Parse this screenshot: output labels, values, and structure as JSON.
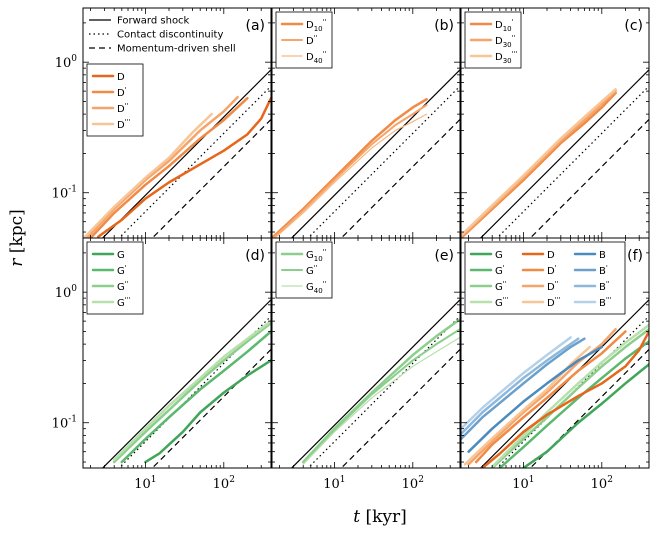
{
  "chart_data": {
    "type": "line",
    "x_scale": "log",
    "y_scale": "log",
    "xlim": [
      1.6,
      400
    ],
    "ylim": [
      0.045,
      2.6
    ],
    "xlabel_symbol": "t",
    "xlabel_unit": "[kyr]",
    "ylabel_symbol": "r",
    "ylabel_unit": "[kpc]",
    "xticks": [
      10,
      100
    ],
    "xtick_labels": [
      {
        "base": "10",
        "exp": "1"
      },
      {
        "base": "10",
        "exp": "2"
      }
    ],
    "yticks": [
      0.1,
      1.0
    ],
    "ytick_labels": [
      {
        "base": "10",
        "exp": "-1"
      },
      {
        "base": "10",
        "exp": "0"
      }
    ],
    "reference_lines": {
      "forward_shock": {
        "name": "Forward shock",
        "coef": 0.024,
        "slope": 0.6
      },
      "contact_discontinuity": {
        "name": "Contact discontinuity",
        "coef": 0.018,
        "slope": 0.6
      },
      "momentum_shell": {
        "name": "Momentum-driven shell",
        "coef": 0.01,
        "slope": 0.6
      }
    },
    "reference_legend_panel": "a",
    "colors": {
      "D": "#e6671c",
      "D'": "#f08a45",
      "D''": "#f5a56b",
      "D'''": "#f8c596",
      "G": "#41a55a",
      "G'": "#5cb86e",
      "G''": "#8ccf8c",
      "G'''": "#b7e0ac",
      "B": "#4b8bbe",
      "B'": "#6ba0cc",
      "B''": "#8db8db",
      "B'''": "#b4d1e8"
    },
    "panels": [
      {
        "label": "(a)",
        "legend": {
          "position": "upper-left",
          "columns": 1
        },
        "series": [
          {
            "name": "D",
            "sup": "",
            "color": "#e6671c",
            "width": 2.5,
            "x": [
              2.5,
              5,
              10,
              20,
              50,
              100,
              200,
              300,
              400
            ],
            "y": [
              0.046,
              0.062,
              0.09,
              0.12,
              0.165,
              0.21,
              0.28,
              0.37,
              0.53
            ]
          },
          {
            "name": "D",
            "sup": "'",
            "color": "#f08a45",
            "width": 2.5,
            "x": [
              2,
              4,
              10,
              20,
              50,
              100,
              200
            ],
            "y": [
              0.045,
              0.07,
              0.115,
              0.16,
              0.26,
              0.36,
              0.53
            ]
          },
          {
            "name": "D",
            "sup": "''",
            "color": "#f5a56b",
            "width": 2.5,
            "x": [
              1.8,
              4,
              10,
              20,
              50,
              100,
              150
            ],
            "y": [
              0.045,
              0.075,
              0.125,
              0.175,
              0.3,
              0.42,
              0.54
            ]
          },
          {
            "name": "D",
            "sup": "'''",
            "color": "#f8c596",
            "width": 2.5,
            "x": [
              1.7,
              4,
              10,
              20,
              40,
              70
            ],
            "y": [
              0.046,
              0.078,
              0.13,
              0.185,
              0.29,
              0.4
            ]
          }
        ]
      },
      {
        "label": "(b)",
        "legend": {
          "position": "upper-left",
          "columns": 1
        },
        "series": [
          {
            "name": "D",
            "sub": "10",
            "sup": "''",
            "color": "#f08a45",
            "width": 2.5,
            "x": [
              1.6,
              4,
              10,
              30,
              60,
              100,
              150
            ],
            "y": [
              0.045,
              0.075,
              0.13,
              0.25,
              0.36,
              0.45,
              0.52
            ]
          },
          {
            "name": "D",
            "sub": "",
            "sup": "''",
            "color": "#f5a56b",
            "width": 2.0,
            "x": [
              1.6,
              4,
              10,
              30,
              60,
              100,
              150
            ],
            "y": [
              0.044,
              0.073,
              0.125,
              0.235,
              0.33,
              0.4,
              0.47
            ]
          },
          {
            "name": "D",
            "sub": "40",
            "sup": "''",
            "color": "#f8b880",
            "width": 1.2,
            "x": [
              1.6,
              4,
              10,
              30,
              60,
              100,
              150
            ],
            "y": [
              0.043,
              0.07,
              0.12,
              0.22,
              0.3,
              0.35,
              0.4
            ]
          }
        ]
      },
      {
        "label": "(c)",
        "legend": {
          "position": "upper-left",
          "columns": 1
        },
        "series": [
          {
            "name": "D",
            "sub": "10",
            "sup": "'",
            "color": "#f08a45",
            "width": 2.5,
            "x": [
              1.6,
              4,
              10,
              30,
              60,
              100,
              150
            ],
            "y": [
              0.045,
              0.075,
              0.125,
              0.24,
              0.34,
              0.45,
              0.58
            ]
          },
          {
            "name": "D",
            "sub": "30",
            "sup": "''",
            "color": "#f5a56b",
            "width": 2.5,
            "x": [
              1.6,
              4,
              10,
              30,
              60,
              100,
              150
            ],
            "y": [
              0.046,
              0.077,
              0.13,
              0.25,
              0.36,
              0.48,
              0.6
            ]
          },
          {
            "name": "D",
            "sub": "30",
            "sup": "'''",
            "color": "#f8c596",
            "width": 2.5,
            "x": [
              1.6,
              4,
              10,
              30,
              60,
              100,
              150
            ],
            "y": [
              0.047,
              0.08,
              0.135,
              0.26,
              0.38,
              0.5,
              0.62
            ]
          }
        ]
      },
      {
        "label": "(d)",
        "legend": {
          "position": "upper-left",
          "columns": 1
        },
        "series": [
          {
            "name": "G",
            "sup": "",
            "color": "#41a55a",
            "width": 2.5,
            "x": [
              10,
              15,
              20,
              30,
              50,
              100,
              200,
              400
            ],
            "y": [
              0.05,
              0.058,
              0.068,
              0.085,
              0.12,
              0.17,
              0.23,
              0.3
            ]
          },
          {
            "name": "G",
            "sup": "'",
            "color": "#5cb86e",
            "width": 2.5,
            "x": [
              5,
              10,
              20,
              50,
              100,
              200,
              400
            ],
            "y": [
              0.05,
              0.075,
              0.11,
              0.18,
              0.25,
              0.35,
              0.5
            ]
          },
          {
            "name": "G",
            "sup": "''",
            "color": "#8ccf8c",
            "width": 2.5,
            "x": [
              4,
              10,
              20,
              50,
              100,
              200,
              400
            ],
            "y": [
              0.05,
              0.085,
              0.125,
              0.21,
              0.3,
              0.42,
              0.58
            ]
          },
          {
            "name": "G",
            "sup": "'''",
            "color": "#b7e0ac",
            "width": 2.5,
            "x": [
              4,
              10,
              20,
              50,
              100,
              200,
              400
            ],
            "y": [
              0.052,
              0.09,
              0.135,
              0.22,
              0.32,
              0.44,
              0.6
            ]
          }
        ]
      },
      {
        "label": "(e)",
        "legend": {
          "position": "upper-left",
          "columns": 1
        },
        "series": [
          {
            "name": "G",
            "sub": "10",
            "sup": "''",
            "color": "#8ccf8c",
            "width": 2.5,
            "x": [
              4,
              10,
              30,
              100,
              200,
              400
            ],
            "y": [
              0.05,
              0.09,
              0.17,
              0.33,
              0.46,
              0.62
            ]
          },
          {
            "name": "G",
            "sub": "",
            "sup": "''",
            "color": "#8ccf8c",
            "width": 2.0,
            "x": [
              4,
              10,
              30,
              100,
              200,
              400
            ],
            "y": [
              0.05,
              0.088,
              0.165,
              0.3,
              0.4,
              0.52
            ]
          },
          {
            "name": "G",
            "sub": "40",
            "sup": "''",
            "color": "#b7e0ac",
            "width": 1.2,
            "x": [
              4,
              10,
              30,
              100,
              200,
              400
            ],
            "y": [
              0.048,
              0.085,
              0.155,
              0.27,
              0.35,
              0.45
            ]
          }
        ]
      },
      {
        "label": "(f)",
        "legend": {
          "position": "upper-left",
          "columns": 3
        },
        "series": [
          {
            "name": "G",
            "sup": "",
            "color": "#41a55a",
            "width": 2.5,
            "x": [
              10,
              20,
              50,
              100,
              200,
              400
            ],
            "y": [
              0.045,
              0.06,
              0.1,
              0.14,
              0.2,
              0.28
            ]
          },
          {
            "name": "G",
            "sup": "'",
            "color": "#5cb86e",
            "width": 2.5,
            "x": [
              5,
              10,
              20,
              50,
              100,
              200,
              400
            ],
            "y": [
              0.045,
              0.065,
              0.095,
              0.155,
              0.22,
              0.31,
              0.42
            ]
          },
          {
            "name": "G",
            "sup": "''",
            "color": "#8ccf8c",
            "width": 2.5,
            "x": [
              4,
              10,
              20,
              50,
              100,
              200,
              400
            ],
            "y": [
              0.045,
              0.075,
              0.11,
              0.185,
              0.27,
              0.38,
              0.52
            ]
          },
          {
            "name": "G",
            "sup": "'''",
            "color": "#b7e0ac",
            "width": 2.5,
            "x": [
              4,
              10,
              20,
              50,
              100,
              200,
              400
            ],
            "y": [
              0.046,
              0.08,
              0.12,
              0.2,
              0.29,
              0.41,
              0.56
            ]
          },
          {
            "name": "D",
            "sup": "",
            "color": "#e6671c",
            "width": 2.5,
            "x": [
              3,
              5,
              10,
              20,
              50,
              100,
              200,
              300,
              400
            ],
            "y": [
              0.045,
              0.058,
              0.085,
              0.115,
              0.16,
              0.2,
              0.27,
              0.36,
              0.5
            ]
          },
          {
            "name": "D",
            "sup": "'",
            "color": "#f08a45",
            "width": 2.5,
            "x": [
              2.5,
              4,
              10,
              20,
              50,
              100,
              200
            ],
            "y": [
              0.05,
              0.068,
              0.11,
              0.155,
              0.25,
              0.34,
              0.5
            ]
          },
          {
            "name": "D",
            "sup": "''",
            "color": "#f5a56b",
            "width": 2.5,
            "x": [
              2,
              4,
              10,
              20,
              50,
              100,
              150
            ],
            "y": [
              0.048,
              0.072,
              0.12,
              0.17,
              0.29,
              0.4,
              0.52
            ]
          },
          {
            "name": "D",
            "sup": "'''",
            "color": "#f8c596",
            "width": 2.5,
            "x": [
              1.8,
              4,
              10,
              20,
              40,
              70
            ],
            "y": [
              0.048,
              0.076,
              0.125,
              0.18,
              0.28,
              0.38
            ]
          },
          {
            "name": "B",
            "sup": "",
            "color": "#4b8bbe",
            "width": 2.5,
            "x": [
              2,
              4,
              10,
              20,
              50,
              100
            ],
            "y": [
              0.06,
              0.09,
              0.145,
              0.2,
              0.3,
              0.38
            ]
          },
          {
            "name": "B",
            "sup": "'",
            "color": "#6ba0cc",
            "width": 2.5,
            "x": [
              1.6,
              3,
              10,
              20,
              40,
              60
            ],
            "y": [
              0.075,
              0.11,
              0.2,
              0.28,
              0.38,
              0.44
            ]
          },
          {
            "name": "B",
            "sup": "''",
            "color": "#8db8db",
            "width": 2.5,
            "x": [
              1.6,
              3,
              10,
              20,
              50
            ],
            "y": [
              0.082,
              0.12,
              0.22,
              0.3,
              0.44
            ]
          },
          {
            "name": "B",
            "sup": "'''",
            "color": "#b4d1e8",
            "width": 2.5,
            "x": [
              1.6,
              3,
              10,
              20,
              40
            ],
            "y": [
              0.09,
              0.13,
              0.24,
              0.33,
              0.45
            ]
          }
        ]
      }
    ]
  }
}
